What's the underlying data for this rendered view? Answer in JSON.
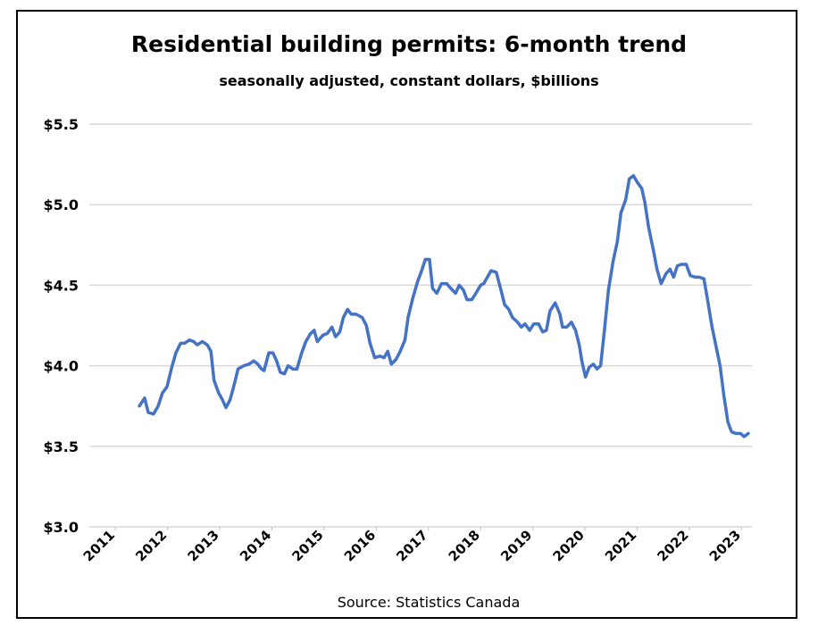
{
  "chart_data": {
    "type": "line",
    "title": "Residential building permits: 6-month trend",
    "subtitle": "seasonally adjusted, constant dollars, $billions",
    "source": "Source:  Statistics Canada",
    "x": [
      2011.46,
      2011.56,
      2011.63,
      2011.73,
      2011.82,
      2011.9,
      2011.99,
      2012.08,
      2012.16,
      2012.25,
      2012.33,
      2012.42,
      2012.5,
      2012.57,
      2012.67,
      2012.76,
      2012.83,
      2012.89,
      2012.98,
      2013.05,
      2013.12,
      2013.2,
      2013.29,
      2013.35,
      2013.46,
      2013.56,
      2013.65,
      2013.73,
      2013.8,
      2013.85,
      2013.94,
      2014.02,
      2014.09,
      2014.16,
      2014.24,
      2014.31,
      2014.4,
      2014.48,
      2014.57,
      2014.65,
      2014.74,
      2014.81,
      2014.87,
      2014.98,
      2015.06,
      2015.15,
      2015.22,
      2015.3,
      2015.37,
      2015.45,
      2015.52,
      2015.61,
      2015.73,
      2015.81,
      2015.88,
      2015.97,
      2016.07,
      2016.15,
      2016.22,
      2016.29,
      2016.38,
      2016.46,
      2016.55,
      2016.61,
      2016.7,
      2016.79,
      2016.87,
      2016.94,
      2017.02,
      2017.08,
      2017.16,
      2017.25,
      2017.35,
      2017.43,
      2017.52,
      2017.59,
      2017.67,
      2017.74,
      2017.83,
      2017.91,
      2018.0,
      2018.06,
      2018.13,
      2018.2,
      2018.3,
      2018.39,
      2018.46,
      2018.54,
      2018.61,
      2018.71,
      2018.78,
      2018.85,
      2018.94,
      2019.02,
      2019.11,
      2019.19,
      2019.26,
      2019.33,
      2019.43,
      2019.52,
      2019.57,
      2019.65,
      2019.74,
      2019.82,
      2019.89,
      2019.94,
      2020.01,
      2020.08,
      2020.16,
      2020.23,
      2020.3,
      2020.37,
      2020.45,
      2020.54,
      2020.62,
      2020.69,
      2020.78,
      2020.85,
      2020.93,
      2021.0,
      2021.09,
      2021.15,
      2021.22,
      2021.31,
      2021.38,
      2021.46,
      2021.55,
      2021.63,
      2021.7,
      2021.77,
      2021.85,
      2021.94,
      2022.02,
      2022.11,
      2022.19,
      2022.28,
      2022.35,
      2022.43,
      2022.5,
      2022.59,
      2022.66,
      2022.74,
      2022.81,
      2022.89,
      2022.98,
      2023.05,
      2023.13
    ],
    "series": [
      {
        "color": "#4472c4",
        "values": [
          3.75,
          3.8,
          3.71,
          3.7,
          3.75,
          3.83,
          3.87,
          3.99,
          4.08,
          4.14,
          4.14,
          4.16,
          4.15,
          4.13,
          4.15,
          4.13,
          4.09,
          3.91,
          3.83,
          3.79,
          3.74,
          3.79,
          3.9,
          3.98,
          4.0,
          4.01,
          4.03,
          4.01,
          3.98,
          3.97,
          4.08,
          4.08,
          4.03,
          3.96,
          3.95,
          4.0,
          3.98,
          3.98,
          4.08,
          4.15,
          4.2,
          4.22,
          4.15,
          4.19,
          4.2,
          4.24,
          4.18,
          4.21,
          4.3,
          4.35,
          4.32,
          4.32,
          4.3,
          4.25,
          4.14,
          4.05,
          4.06,
          4.05,
          4.09,
          4.01,
          4.04,
          4.09,
          4.16,
          4.3,
          4.42,
          4.52,
          4.59,
          4.66,
          4.66,
          4.48,
          4.45,
          4.51,
          4.51,
          4.48,
          4.45,
          4.5,
          4.47,
          4.41,
          4.41,
          4.45,
          4.5,
          4.51,
          4.55,
          4.59,
          4.58,
          4.47,
          4.38,
          4.35,
          4.3,
          4.27,
          4.24,
          4.26,
          4.22,
          4.26,
          4.26,
          4.21,
          4.22,
          4.34,
          4.39,
          4.32,
          4.24,
          4.24,
          4.27,
          4.22,
          4.13,
          4.03,
          3.93,
          3.99,
          4.01,
          3.98,
          4.0,
          4.21,
          4.47,
          4.65,
          4.77,
          4.95,
          5.03,
          5.16,
          5.18,
          5.14,
          5.1,
          5.01,
          4.86,
          4.72,
          4.6,
          4.51,
          4.57,
          4.6,
          4.55,
          4.62,
          4.63,
          4.63,
          4.56,
          4.55,
          4.55,
          4.54,
          4.41,
          4.25,
          4.14,
          4.0,
          3.82,
          3.65,
          3.59,
          3.58,
          3.58,
          3.56,
          3.58
        ]
      }
    ],
    "xlim": [
      2010.5,
      2023.2
    ],
    "xticks": [
      2011,
      2012,
      2013,
      2014,
      2015,
      2016,
      2017,
      2018,
      2019,
      2020,
      2021,
      2022,
      2023
    ],
    "ylim": [
      3.0,
      5.5
    ],
    "yticks": [
      {
        "value": 3.0,
        "label": "$3.0"
      },
      {
        "value": 3.5,
        "label": "$3.5"
      },
      {
        "value": 4.0,
        "label": "$4.0"
      },
      {
        "value": 4.5,
        "label": "$4.5"
      },
      {
        "value": 5.0,
        "label": "$5.0"
      },
      {
        "value": 5.5,
        "label": "$5.5"
      }
    ],
    "grid": true
  }
}
